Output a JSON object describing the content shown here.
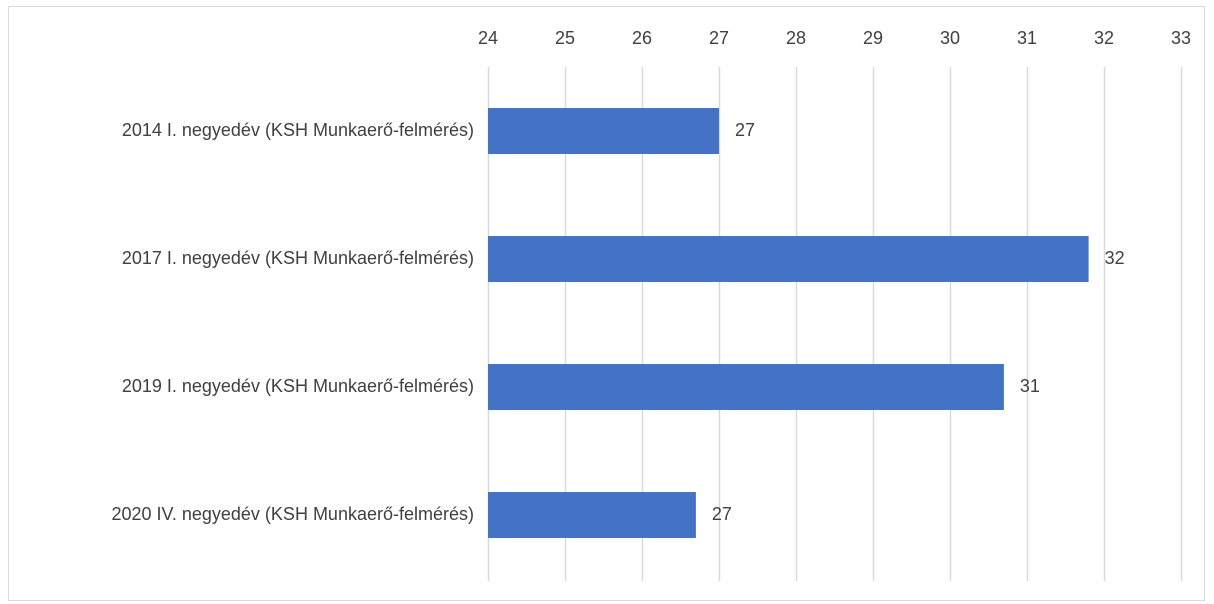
{
  "chart_data": {
    "type": "bar",
    "orientation": "horizontal",
    "categories": [
      "2014 I. negyedév (KSH Munkaerő-felmérés)",
      "2017 I. negyedév (KSH Munkaerő-felmérés)",
      "2019 I. negyedév (KSH Munkaerő-felmérés)",
      "2020 IV. negyedév (KSH Munkaerő-felmérés)"
    ],
    "values": [
      27.0,
      31.8,
      30.7,
      26.7
    ],
    "data_labels": [
      "27",
      "32",
      "31",
      "27"
    ],
    "title": "",
    "xlabel": "",
    "ylabel": "",
    "xlim": [
      24,
      33
    ],
    "x_ticks": [
      "24",
      "25",
      "26",
      "27",
      "28",
      "29",
      "30",
      "31",
      "32",
      "33"
    ],
    "x_axis_position": "top",
    "grid": true,
    "legend": "none",
    "bar_color": "#4472c4",
    "grid_color": "#d9d9d9",
    "text_color": "#404040"
  }
}
